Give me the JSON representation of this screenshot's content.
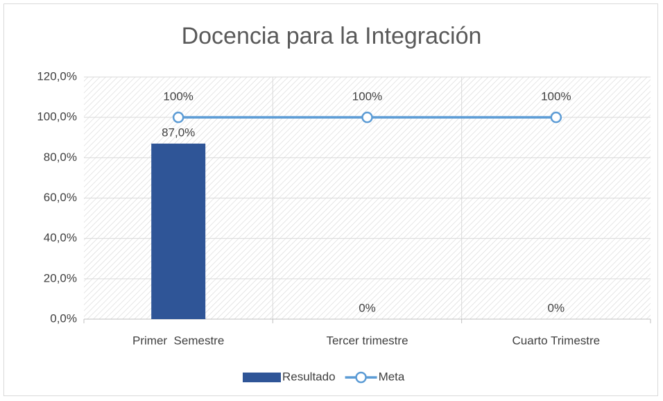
{
  "chart_data": {
    "type": "bar",
    "title": "Docencia para la Integración",
    "categories": [
      "Primer  Semestre",
      "Tercer trimestre",
      "Cuarto Trimestre"
    ],
    "series": [
      {
        "name": "Resultado",
        "type": "bar",
        "color": "#2f5597",
        "values": [
          87,
          0,
          0
        ],
        "value_labels": [
          "87,0%",
          "0%",
          "0%"
        ]
      },
      {
        "name": "Meta",
        "type": "line",
        "color": "#5b9bd5",
        "values": [
          100,
          100,
          100
        ],
        "value_labels": [
          "100%",
          "100%",
          "100%"
        ]
      }
    ],
    "ylim": [
      0,
      120
    ],
    "yticks": [
      {
        "value": 0,
        "label": "0,0%"
      },
      {
        "value": 20,
        "label": "20,0%"
      },
      {
        "value": 40,
        "label": "40,0%"
      },
      {
        "value": 60,
        "label": "60,0%"
      },
      {
        "value": 80,
        "label": "80,0%"
      },
      {
        "value": 100,
        "label": "100,0%"
      },
      {
        "value": 120,
        "label": "120,0%"
      }
    ],
    "grid": true,
    "legend": "bottom"
  }
}
